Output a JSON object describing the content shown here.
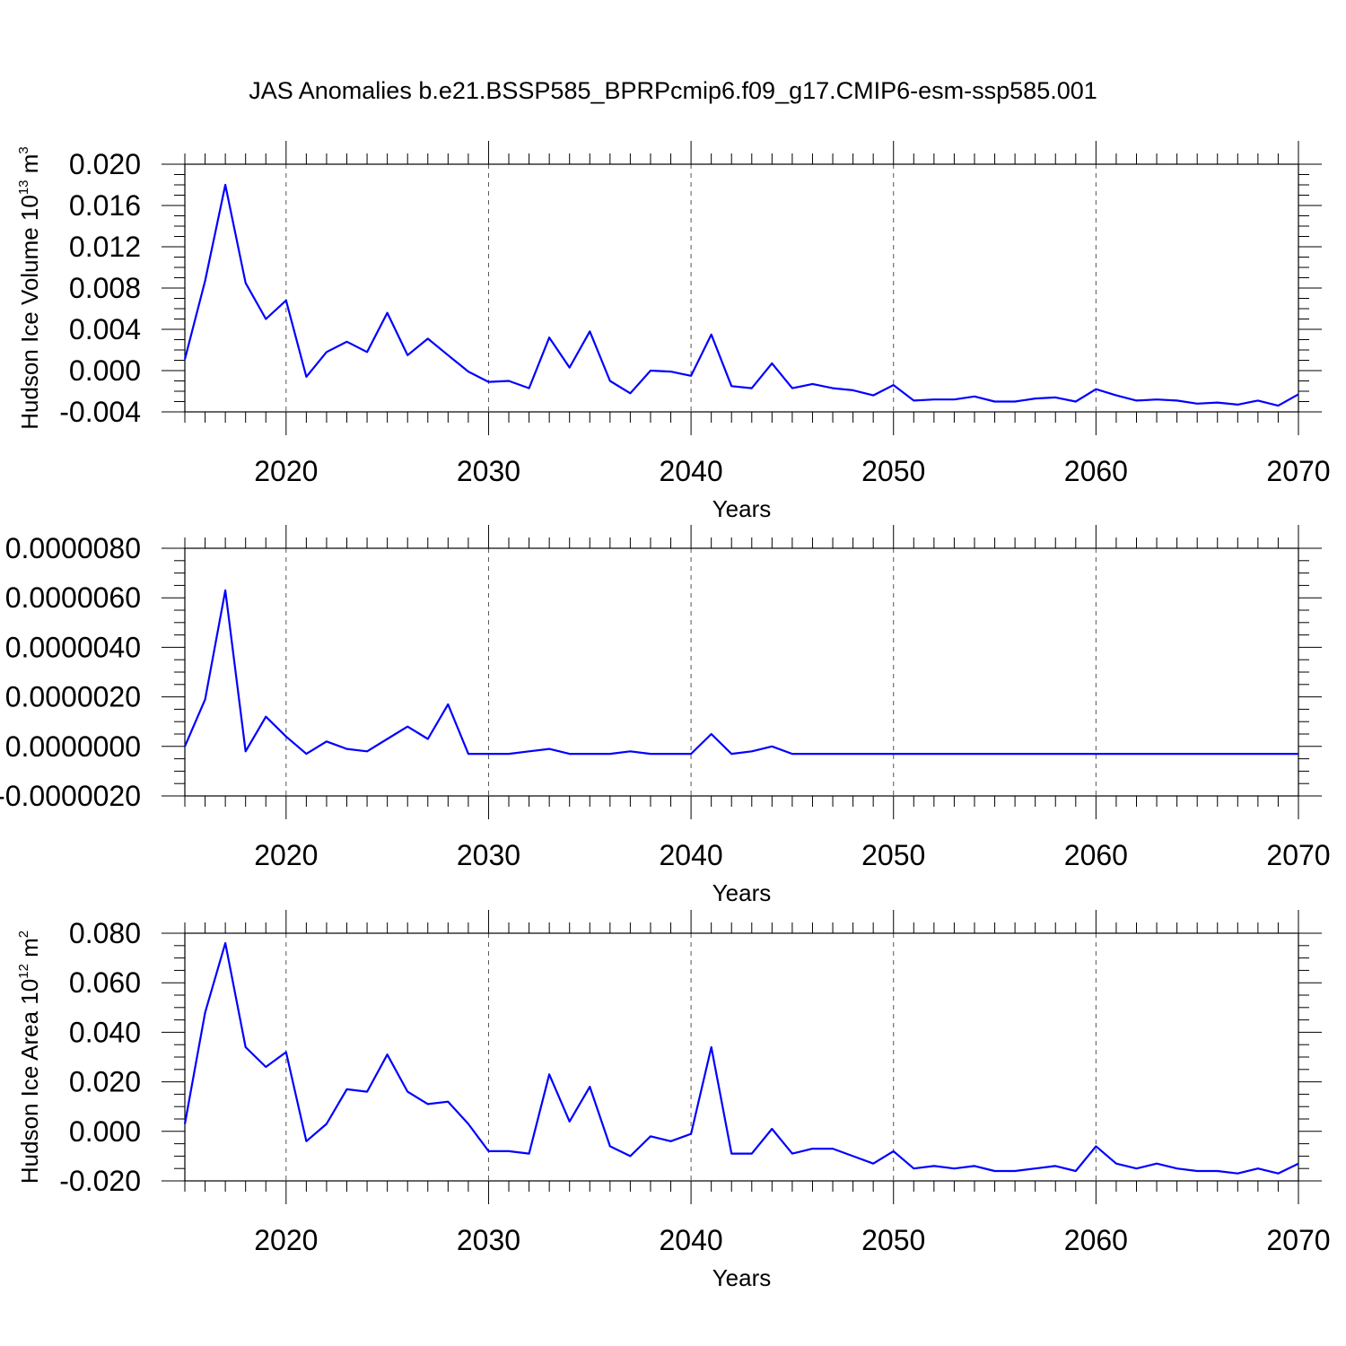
{
  "title": "JAS Anomalies b.e21.BSSP585_BPRPcmip6.f09_g17.CMIP6-esm-ssp585.001",
  "colors": {
    "line": "#0000ff",
    "axis": "#000000",
    "grid": "#555555"
  },
  "chart_data": [
    {
      "type": "line",
      "title": "JAS Anomalies b.e21.BSSP585_BPRPcmip6.f09_g17.CMIP6-esm-ssp585.001",
      "xlabel": "Years",
      "ylabel": {
        "text": "Hudson Ice Volume 10",
        "sup": "13",
        "unit": " m",
        "unit_sup": "3"
      },
      "xlim": [
        2015,
        2070
      ],
      "ylim": [
        -0.004,
        0.02
      ],
      "xticks": [
        "2020",
        "2030",
        "2040",
        "2050",
        "2060",
        "2070"
      ],
      "yticks": [
        "0.020",
        "0.016",
        "0.012",
        "0.008",
        "0.004",
        "0.000",
        "-0.004"
      ],
      "ytick_values": [
        0.02,
        0.016,
        0.012,
        0.008,
        0.004,
        0.0,
        -0.004
      ],
      "grid": "vertical dashed at major x ticks",
      "x": [
        2015,
        2016,
        2017,
        2018,
        2019,
        2020,
        2021,
        2022,
        2023,
        2024,
        2025,
        2026,
        2027,
        2028,
        2029,
        2030,
        2031,
        2032,
        2033,
        2034,
        2035,
        2036,
        2037,
        2038,
        2039,
        2040,
        2041,
        2042,
        2043,
        2044,
        2045,
        2046,
        2047,
        2048,
        2049,
        2050,
        2051,
        2052,
        2053,
        2054,
        2055,
        2056,
        2057,
        2058,
        2059,
        2060,
        2061,
        2062,
        2063,
        2064,
        2065,
        2066,
        2067,
        2068,
        2069,
        2070
      ],
      "series": [
        {
          "values": [
            0.0011,
            0.0087,
            0.018,
            0.0085,
            0.005,
            0.0068,
            -0.0006,
            0.0018,
            0.0028,
            0.0018,
            0.0056,
            0.0015,
            0.0031,
            0.0015,
            -0.0001,
            -0.0011,
            -0.001,
            -0.0017,
            0.0032,
            0.0003,
            0.0038,
            -0.001,
            -0.0022,
            -0.0,
            -0.0001,
            -0.0005,
            0.0035,
            -0.0015,
            -0.0017,
            0.0007,
            -0.0017,
            -0.0013,
            -0.0017,
            -0.0019,
            -0.0024,
            -0.0014,
            -0.0029,
            -0.0028,
            -0.0028,
            -0.0025,
            -0.003,
            -0.003,
            -0.0027,
            -0.0026,
            -0.003,
            -0.0018,
            -0.0024,
            -0.0029,
            -0.0028,
            -0.0029,
            -0.0032,
            -0.0031,
            -0.0033,
            -0.0029,
            -0.0034,
            -0.0023
          ]
        }
      ]
    },
    {
      "type": "line",
      "xlabel": "Years",
      "ylabel": null,
      "xlim": [
        2015,
        2070
      ],
      "ylim": [
        -2e-06,
        8e-06
      ],
      "xticks": [
        "2020",
        "2030",
        "2040",
        "2050",
        "2060",
        "2070"
      ],
      "yticks": [
        "0.0000080",
        "0.0000060",
        "0.0000040",
        "0.0000020",
        "0.0000000",
        "-0.0000020"
      ],
      "ytick_values": [
        8e-06,
        6e-06,
        4e-06,
        2e-06,
        0.0,
        -2e-06
      ],
      "grid": "vertical dashed at major x ticks",
      "x": [
        2015,
        2016,
        2017,
        2018,
        2019,
        2020,
        2021,
        2022,
        2023,
        2024,
        2025,
        2026,
        2027,
        2028,
        2029,
        2030,
        2031,
        2032,
        2033,
        2034,
        2035,
        2036,
        2037,
        2038,
        2039,
        2040,
        2041,
        2042,
        2043,
        2044,
        2045,
        2046,
        2047,
        2048,
        2049,
        2050,
        2051,
        2052,
        2053,
        2054,
        2055,
        2056,
        2057,
        2058,
        2059,
        2060,
        2061,
        2062,
        2063,
        2064,
        2065,
        2066,
        2067,
        2068,
        2069,
        2070
      ],
      "series": [
        {
          "values": [
            0.0,
            1.9e-06,
            6.3e-06,
            -2e-07,
            1.2e-06,
            4e-07,
            -3e-07,
            2e-07,
            -1e-07,
            -2e-07,
            3e-07,
            8e-07,
            3e-07,
            1.7e-06,
            -3e-07,
            -3e-07,
            -3e-07,
            -2e-07,
            -1e-07,
            -3e-07,
            -3e-07,
            -3e-07,
            -2e-07,
            -3e-07,
            -3e-07,
            -3e-07,
            5e-07,
            -3e-07,
            -2e-07,
            0.0,
            -3e-07,
            -3e-07,
            -3e-07,
            -3e-07,
            -3e-07,
            -3e-07,
            -3e-07,
            -3e-07,
            -3e-07,
            -3e-07,
            -3e-07,
            -3e-07,
            -3e-07,
            -3e-07,
            -3e-07,
            -3e-07,
            -3e-07,
            -3e-07,
            -3e-07,
            -3e-07,
            -3e-07,
            -3e-07,
            -3e-07,
            -3e-07,
            -3e-07,
            -3e-07
          ]
        }
      ]
    },
    {
      "type": "line",
      "xlabel": "Years",
      "ylabel": {
        "text": "Hudson Ice Area 10",
        "sup": "12",
        "unit": " m",
        "unit_sup": "2"
      },
      "xlim": [
        2015,
        2070
      ],
      "ylim": [
        -0.02,
        0.08
      ],
      "xticks": [
        "2020",
        "2030",
        "2040",
        "2050",
        "2060",
        "2070"
      ],
      "yticks": [
        "0.080",
        "0.060",
        "0.040",
        "0.020",
        "0.000",
        "-0.020"
      ],
      "ytick_values": [
        0.08,
        0.06,
        0.04,
        0.02,
        0.0,
        -0.02
      ],
      "grid": "vertical dashed at major x ticks",
      "x": [
        2015,
        2016,
        2017,
        2018,
        2019,
        2020,
        2021,
        2022,
        2023,
        2024,
        2025,
        2026,
        2027,
        2028,
        2029,
        2030,
        2031,
        2032,
        2033,
        2034,
        2035,
        2036,
        2037,
        2038,
        2039,
        2040,
        2041,
        2042,
        2043,
        2044,
        2045,
        2046,
        2047,
        2048,
        2049,
        2050,
        2051,
        2052,
        2053,
        2054,
        2055,
        2056,
        2057,
        2058,
        2059,
        2060,
        2061,
        2062,
        2063,
        2064,
        2065,
        2066,
        2067,
        2068,
        2069,
        2070
      ],
      "series": [
        {
          "values": [
            0.003,
            0.048,
            0.076,
            0.034,
            0.026,
            0.032,
            -0.004,
            0.003,
            0.017,
            0.016,
            0.031,
            0.016,
            0.011,
            0.012,
            0.003,
            -0.008,
            -0.008,
            -0.009,
            0.023,
            0.004,
            0.018,
            -0.006,
            -0.01,
            -0.002,
            -0.004,
            -0.001,
            0.034,
            -0.009,
            -0.009,
            0.001,
            -0.009,
            -0.007,
            -0.007,
            -0.01,
            -0.013,
            -0.008,
            -0.015,
            -0.014,
            -0.015,
            -0.014,
            -0.016,
            -0.016,
            -0.015,
            -0.014,
            -0.016,
            -0.006,
            -0.013,
            -0.015,
            -0.013,
            -0.015,
            -0.016,
            -0.016,
            -0.017,
            -0.015,
            -0.017,
            -0.013
          ]
        }
      ]
    }
  ]
}
